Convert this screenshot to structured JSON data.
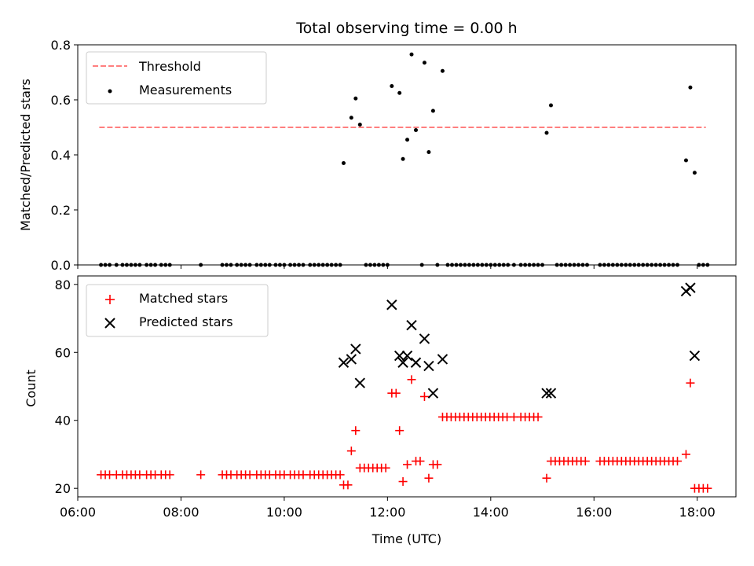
{
  "chart_data": [
    {
      "type": "scatter",
      "title": "Total observing time = 0.00 h",
      "xlabel": "",
      "ylabel": "Matched/Predicted stars",
      "xlim": [
        "06:00",
        "18:45"
      ],
      "ylim": [
        0,
        0.8
      ],
      "yticks": [
        "0.0",
        "0.2",
        "0.4",
        "0.6",
        "0.8"
      ],
      "legend_position": "top-left",
      "threshold": {
        "name": "Threshold",
        "value": 0.5,
        "x_start": "06:25",
        "x_end": "18:10",
        "color": "#ff7f7f",
        "style": "dashed"
      },
      "series": [
        {
          "name": "Measurements",
          "color": "#000000",
          "marker": "dot",
          "points": [
            [
              "06:27",
              0
            ],
            [
              "06:32",
              0
            ],
            [
              "06:37",
              0
            ],
            [
              "06:45",
              0
            ],
            [
              "06:52",
              0
            ],
            [
              "06:57",
              0
            ],
            [
              "07:02",
              0
            ],
            [
              "07:07",
              0
            ],
            [
              "07:12",
              0
            ],
            [
              "07:20",
              0
            ],
            [
              "07:25",
              0
            ],
            [
              "07:30",
              0
            ],
            [
              "07:37",
              0
            ],
            [
              "07:42",
              0
            ],
            [
              "07:47",
              0
            ],
            [
              "08:23",
              0
            ],
            [
              "08:48",
              0
            ],
            [
              "08:53",
              0
            ],
            [
              "08:58",
              0
            ],
            [
              "09:05",
              0
            ],
            [
              "09:10",
              0
            ],
            [
              "09:15",
              0
            ],
            [
              "09:20",
              0
            ],
            [
              "09:28",
              0
            ],
            [
              "09:33",
              0
            ],
            [
              "09:38",
              0
            ],
            [
              "09:43",
              0
            ],
            [
              "09:50",
              0
            ],
            [
              "09:55",
              0
            ],
            [
              "10:00",
              0
            ],
            [
              "10:07",
              0
            ],
            [
              "10:12",
              0
            ],
            [
              "10:17",
              0
            ],
            [
              "10:22",
              0
            ],
            [
              "10:30",
              0
            ],
            [
              "10:35",
              0
            ],
            [
              "10:40",
              0
            ],
            [
              "10:45",
              0
            ],
            [
              "10:50",
              0
            ],
            [
              "10:55",
              0
            ],
            [
              "11:00",
              0
            ],
            [
              "11:05",
              0
            ],
            [
              "11:09",
              0.37
            ],
            [
              "11:18",
              0.535
            ],
            [
              "11:23",
              0.605
            ],
            [
              "11:28",
              0.51
            ],
            [
              "11:35",
              0
            ],
            [
              "11:40",
              0
            ],
            [
              "11:45",
              0
            ],
            [
              "11:50",
              0
            ],
            [
              "11:55",
              0
            ],
            [
              "12:00",
              0
            ],
            [
              "12:05",
              0.65
            ],
            [
              "12:14",
              0.625
            ],
            [
              "12:18",
              0.385
            ],
            [
              "12:23",
              0.455
            ],
            [
              "12:28",
              0.765
            ],
            [
              "12:33",
              0.49
            ],
            [
              "12:40",
              0
            ],
            [
              "12:43",
              0.735
            ],
            [
              "12:48",
              0.41
            ],
            [
              "12:53",
              0.56
            ],
            [
              "12:58",
              0
            ],
            [
              "13:04",
              0.705
            ],
            [
              "13:10",
              0
            ],
            [
              "13:15",
              0
            ],
            [
              "13:20",
              0
            ],
            [
              "13:25",
              0
            ],
            [
              "13:30",
              0
            ],
            [
              "13:35",
              0
            ],
            [
              "13:40",
              0
            ],
            [
              "13:45",
              0
            ],
            [
              "13:50",
              0
            ],
            [
              "13:55",
              0
            ],
            [
              "14:00",
              0
            ],
            [
              "14:05",
              0
            ],
            [
              "14:10",
              0
            ],
            [
              "14:15",
              0
            ],
            [
              "14:20",
              0
            ],
            [
              "14:27",
              0
            ],
            [
              "14:35",
              0
            ],
            [
              "14:40",
              0
            ],
            [
              "14:45",
              0
            ],
            [
              "14:50",
              0
            ],
            [
              "14:55",
              0
            ],
            [
              "15:00",
              0
            ],
            [
              "15:05",
              0.48
            ],
            [
              "15:10",
              0.58
            ],
            [
              "15:17",
              0
            ],
            [
              "15:22",
              0
            ],
            [
              "15:27",
              0
            ],
            [
              "15:32",
              0
            ],
            [
              "15:37",
              0
            ],
            [
              "15:42",
              0
            ],
            [
              "15:47",
              0
            ],
            [
              "15:52",
              0
            ],
            [
              "16:07",
              0
            ],
            [
              "16:12",
              0
            ],
            [
              "16:17",
              0
            ],
            [
              "16:22",
              0
            ],
            [
              "16:27",
              0
            ],
            [
              "16:32",
              0
            ],
            [
              "16:37",
              0
            ],
            [
              "16:42",
              0
            ],
            [
              "16:47",
              0
            ],
            [
              "16:52",
              0
            ],
            [
              "16:57",
              0
            ],
            [
              "17:02",
              0
            ],
            [
              "17:07",
              0
            ],
            [
              "17:12",
              0
            ],
            [
              "17:17",
              0
            ],
            [
              "17:22",
              0
            ],
            [
              "17:27",
              0
            ],
            [
              "17:32",
              0
            ],
            [
              "17:37",
              0
            ],
            [
              "17:47",
              0.38
            ],
            [
              "17:52",
              0.645
            ],
            [
              "17:57",
              0.335
            ],
            [
              "18:02",
              0
            ],
            [
              "18:07",
              0
            ],
            [
              "18:12",
              0
            ]
          ]
        }
      ]
    },
    {
      "type": "scatter",
      "title": "",
      "xlabel": "Time (UTC)",
      "ylabel": "Count",
      "xlim": [
        "06:00",
        "18:45"
      ],
      "ylim": [
        17.5,
        82.5
      ],
      "xticks": [
        "06:00",
        "08:00",
        "10:00",
        "12:00",
        "14:00",
        "16:00",
        "18:00"
      ],
      "yticks": [
        "20",
        "40",
        "60",
        "80"
      ],
      "legend_position": "top-left",
      "series": [
        {
          "name": "Matched stars",
          "color": "#ff0000",
          "marker": "plus",
          "points": [
            [
              "06:27",
              24
            ],
            [
              "06:32",
              24
            ],
            [
              "06:37",
              24
            ],
            [
              "06:45",
              24
            ],
            [
              "06:52",
              24
            ],
            [
              "06:57",
              24
            ],
            [
              "07:02",
              24
            ],
            [
              "07:07",
              24
            ],
            [
              "07:12",
              24
            ],
            [
              "07:20",
              24
            ],
            [
              "07:25",
              24
            ],
            [
              "07:30",
              24
            ],
            [
              "07:37",
              24
            ],
            [
              "07:42",
              24
            ],
            [
              "07:47",
              24
            ],
            [
              "08:23",
              24
            ],
            [
              "08:48",
              24
            ],
            [
              "08:53",
              24
            ],
            [
              "08:58",
              24
            ],
            [
              "09:05",
              24
            ],
            [
              "09:10",
              24
            ],
            [
              "09:15",
              24
            ],
            [
              "09:20",
              24
            ],
            [
              "09:28",
              24
            ],
            [
              "09:33",
              24
            ],
            [
              "09:38",
              24
            ],
            [
              "09:43",
              24
            ],
            [
              "09:50",
              24
            ],
            [
              "09:55",
              24
            ],
            [
              "10:00",
              24
            ],
            [
              "10:07",
              24
            ],
            [
              "10:12",
              24
            ],
            [
              "10:17",
              24
            ],
            [
              "10:22",
              24
            ],
            [
              "10:30",
              24
            ],
            [
              "10:35",
              24
            ],
            [
              "10:40",
              24
            ],
            [
              "10:45",
              24
            ],
            [
              "10:50",
              24
            ],
            [
              "10:55",
              24
            ],
            [
              "11:00",
              24
            ],
            [
              "11:05",
              24
            ],
            [
              "11:09",
              21
            ],
            [
              "11:14",
              21
            ],
            [
              "11:18",
              31
            ],
            [
              "11:23",
              37
            ],
            [
              "11:28",
              26
            ],
            [
              "11:33",
              26
            ],
            [
              "11:38",
              26
            ],
            [
              "11:43",
              26
            ],
            [
              "11:48",
              26
            ],
            [
              "11:53",
              26
            ],
            [
              "11:58",
              26
            ],
            [
              "12:05",
              48
            ],
            [
              "12:10",
              48
            ],
            [
              "12:14",
              37
            ],
            [
              "12:18",
              22
            ],
            [
              "12:23",
              27
            ],
            [
              "12:28",
              52
            ],
            [
              "12:33",
              28
            ],
            [
              "12:38",
              28
            ],
            [
              "12:43",
              47
            ],
            [
              "12:48",
              23
            ],
            [
              "12:53",
              27
            ],
            [
              "12:58",
              27
            ],
            [
              "13:04",
              41
            ],
            [
              "13:09",
              41
            ],
            [
              "13:14",
              41
            ],
            [
              "13:19",
              41
            ],
            [
              "13:24",
              41
            ],
            [
              "13:29",
              41
            ],
            [
              "13:34",
              41
            ],
            [
              "13:39",
              41
            ],
            [
              "13:44",
              41
            ],
            [
              "13:49",
              41
            ],
            [
              "13:54",
              41
            ],
            [
              "13:59",
              41
            ],
            [
              "14:04",
              41
            ],
            [
              "14:09",
              41
            ],
            [
              "14:14",
              41
            ],
            [
              "14:19",
              41
            ],
            [
              "14:27",
              41
            ],
            [
              "14:35",
              41
            ],
            [
              "14:40",
              41
            ],
            [
              "14:45",
              41
            ],
            [
              "14:50",
              41
            ],
            [
              "14:55",
              41
            ],
            [
              "15:05",
              23
            ],
            [
              "15:10",
              28
            ],
            [
              "15:15",
              28
            ],
            [
              "15:20",
              28
            ],
            [
              "15:25",
              28
            ],
            [
              "15:30",
              28
            ],
            [
              "15:35",
              28
            ],
            [
              "15:40",
              28
            ],
            [
              "15:45",
              28
            ],
            [
              "15:50",
              28
            ],
            [
              "16:07",
              28
            ],
            [
              "16:12",
              28
            ],
            [
              "16:17",
              28
            ],
            [
              "16:22",
              28
            ],
            [
              "16:27",
              28
            ],
            [
              "16:32",
              28
            ],
            [
              "16:37",
              28
            ],
            [
              "16:42",
              28
            ],
            [
              "16:47",
              28
            ],
            [
              "16:52",
              28
            ],
            [
              "16:57",
              28
            ],
            [
              "17:02",
              28
            ],
            [
              "17:07",
              28
            ],
            [
              "17:12",
              28
            ],
            [
              "17:17",
              28
            ],
            [
              "17:22",
              28
            ],
            [
              "17:27",
              28
            ],
            [
              "17:32",
              28
            ],
            [
              "17:37",
              28
            ],
            [
              "17:47",
              30
            ],
            [
              "17:52",
              51
            ],
            [
              "17:57",
              20
            ],
            [
              "18:02",
              20
            ],
            [
              "18:07",
              20
            ],
            [
              "18:12",
              20
            ]
          ]
        },
        {
          "name": "Predicted stars",
          "color": "#000000",
          "marker": "x",
          "points": [
            [
              "11:09",
              57
            ],
            [
              "11:18",
              58
            ],
            [
              "11:23",
              61
            ],
            [
              "11:28",
              51
            ],
            [
              "12:05",
              74
            ],
            [
              "12:14",
              59
            ],
            [
              "12:18",
              57
            ],
            [
              "12:23",
              59
            ],
            [
              "12:28",
              68
            ],
            [
              "12:33",
              57
            ],
            [
              "12:43",
              64
            ],
            [
              "12:48",
              56
            ],
            [
              "12:53",
              48
            ],
            [
              "13:04",
              58
            ],
            [
              "15:05",
              48
            ],
            [
              "15:10",
              48
            ],
            [
              "17:47",
              78
            ],
            [
              "17:52",
              79
            ],
            [
              "17:57",
              59
            ]
          ]
        }
      ]
    }
  ]
}
